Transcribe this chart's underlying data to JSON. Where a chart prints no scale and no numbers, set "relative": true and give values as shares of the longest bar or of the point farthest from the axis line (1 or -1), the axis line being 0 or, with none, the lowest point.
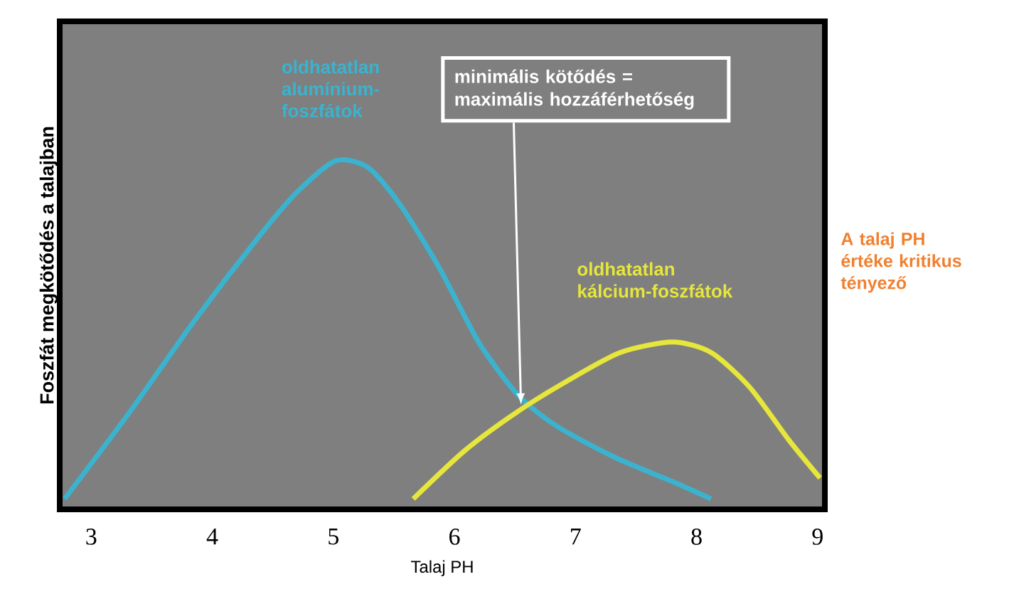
{
  "chart_data": {
    "type": "line",
    "relative": true,
    "xlabel": "Talaj PH",
    "ylabel": "Foszfát megkötődés a talajban",
    "xlim": [
      2.74,
      9.06
    ],
    "xticks": [
      3,
      4,
      5,
      6,
      7,
      8,
      9
    ],
    "series": [
      {
        "name": "oldhatatlan alumínium-foszfátok",
        "color": "#3bb3cf",
        "x": [
          2.78,
          3.32,
          3.85,
          4.38,
          4.7,
          5.02,
          5.29,
          5.56,
          5.88,
          6.2,
          6.52,
          6.84,
          7.32,
          7.8,
          8.12
        ],
        "values": [
          0.03,
          0.28,
          0.54,
          0.78,
          0.91,
          1.0,
          0.98,
          0.87,
          0.69,
          0.48,
          0.33,
          0.24,
          0.15,
          0.08,
          0.03
        ]
      },
      {
        "name": "oldhatatlan kálcium-foszfátok",
        "color": "#e6e63c",
        "x": [
          5.66,
          6.09,
          6.52,
          6.94,
          7.37,
          7.8,
          8.12,
          8.44,
          8.76,
          9.02
        ],
        "values": [
          0.03,
          0.17,
          0.28,
          0.37,
          0.45,
          0.48,
          0.45,
          0.35,
          0.2,
          0.09
        ]
      }
    ],
    "annotations": [
      {
        "text": "minimális kötődés = maximális hozzáférhetőség",
        "x": 6.55,
        "y": 0.3
      },
      "A talaj PH értéke kritikus tényező"
    ]
  }
}
